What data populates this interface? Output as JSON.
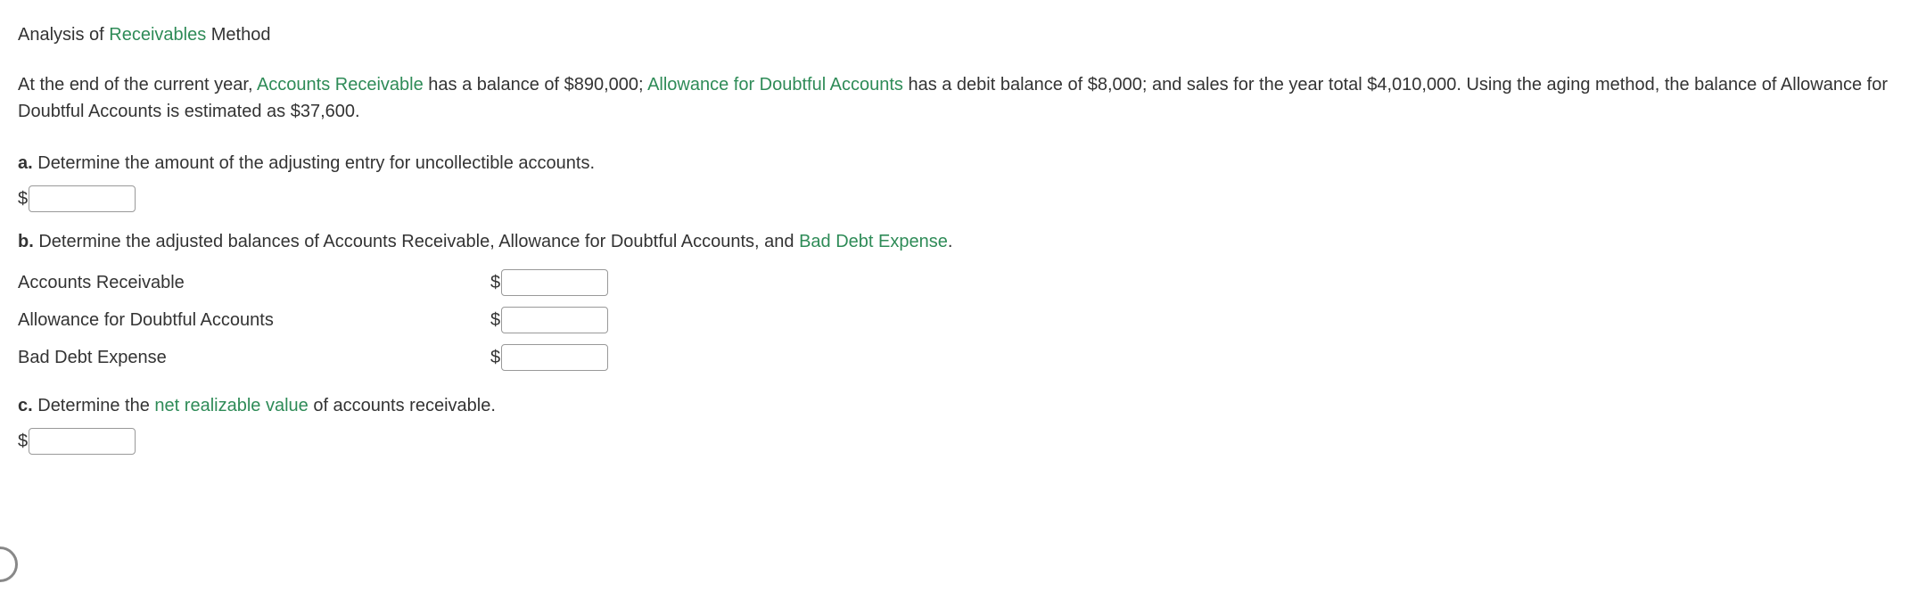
{
  "heading": {
    "part1": "Analysis of ",
    "link": "Receivables",
    "part2": " Method"
  },
  "intro": {
    "t1": "At the end of the current year, ",
    "link1": "Accounts Receivable",
    "t2": " has a balance of $890,000; ",
    "link2": "Allowance for Doubtful Accounts",
    "t3": " has a debit balance of $8,000; and sales for the year total $4,010,000. Using the aging method, the balance of Allowance for Doubtful Accounts is estimated as $37,600."
  },
  "qa": {
    "letter": "a.",
    "text": "  Determine the amount of the adjusting entry for uncollectible accounts.",
    "dollar": "$"
  },
  "qb": {
    "letter": "b.",
    "text1": "  Determine the adjusted balances of Accounts Receivable, Allowance for Doubtful Accounts, and ",
    "link": "Bad Debt Expense",
    "text2": ".",
    "dollar": "$",
    "rows": [
      {
        "label": "Accounts Receivable"
      },
      {
        "label": "Allowance for Doubtful Accounts"
      },
      {
        "label": "Bad Debt Expense"
      }
    ]
  },
  "qc": {
    "letter": "c.",
    "text1": "  Determine the ",
    "link": "net realizable value",
    "text2": " of accounts receivable.",
    "dollar": "$"
  },
  "colors": {
    "text": "#333333",
    "link": "#2e8b57",
    "input_border": "#999999",
    "background": "#ffffff"
  }
}
